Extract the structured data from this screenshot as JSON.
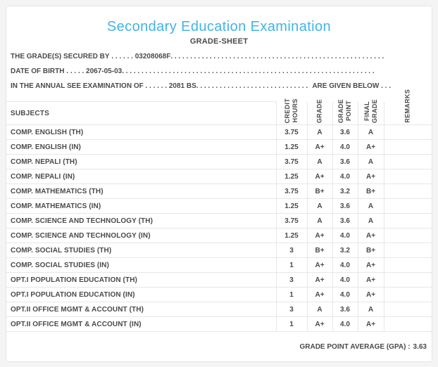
{
  "header": {
    "title": "Secondary Education Examination",
    "subtitle": "GRADE-SHEET",
    "title_color": "#41b4e8",
    "text_color": "#4a4a4a"
  },
  "info": {
    "rows": [
      {
        "label": "THE GRADE(S) SECURED BY",
        "leader": " . . . . . . ",
        "value": "03208068F",
        "suffix": ""
      },
      {
        "label": "DATE OF BIRTH",
        "leader": " . . . . . ",
        "value": "2067-05-03",
        "suffix": ""
      },
      {
        "label": "IN THE ANNUAL SEE EXAMINATION OF",
        "leader": " . . . . . . ",
        "value": "2081 BS",
        "suffix": "ARE GIVEN BELOW . . ."
      }
    ],
    "dot_fill": ". . . . . . . . . . . . . . . . . . . . . . . . . . . . . . . . . . . . . . . . . . . . . . . . . . . . . . . . . . . . . . . . . . . . . . . . . . . ."
  },
  "table": {
    "headers": [
      {
        "label": "SUBJECTS"
      },
      {
        "label": "CREDIT\nHOURS"
      },
      {
        "label": "GRADE"
      },
      {
        "label": "GRADE\nPOINT"
      },
      {
        "label": "FINAL\nGRADE"
      },
      {
        "label": "REMARKS"
      }
    ],
    "rows": [
      {
        "subject": "COMP. ENGLISH (TH)",
        "credit_hours": "3.75",
        "grade": "A",
        "grade_point": "3.6",
        "final_grade": "A",
        "remarks": ""
      },
      {
        "subject": "COMP. ENGLISH (IN)",
        "credit_hours": "1.25",
        "grade": "A+",
        "grade_point": "4.0",
        "final_grade": "A+",
        "remarks": ""
      },
      {
        "subject": "COMP. NEPALI (TH)",
        "credit_hours": "3.75",
        "grade": "A",
        "grade_point": "3.6",
        "final_grade": "A",
        "remarks": ""
      },
      {
        "subject": "COMP. NEPALI (IN)",
        "credit_hours": "1.25",
        "grade": "A+",
        "grade_point": "4.0",
        "final_grade": "A+",
        "remarks": ""
      },
      {
        "subject": "COMP. MATHEMATICS (TH)",
        "credit_hours": "3.75",
        "grade": "B+",
        "grade_point": "3.2",
        "final_grade": "B+",
        "remarks": ""
      },
      {
        "subject": "COMP. MATHEMATICS (IN)",
        "credit_hours": "1.25",
        "grade": "A",
        "grade_point": "3.6",
        "final_grade": "A",
        "remarks": ""
      },
      {
        "subject": "COMP. SCIENCE AND TECHNOLOGY (TH)",
        "credit_hours": "3.75",
        "grade": "A",
        "grade_point": "3.6",
        "final_grade": "A",
        "remarks": ""
      },
      {
        "subject": "COMP. SCIENCE AND TECHNOLOGY (IN)",
        "credit_hours": "1.25",
        "grade": "A+",
        "grade_point": "4.0",
        "final_grade": "A+",
        "remarks": ""
      },
      {
        "subject": "COMP. SOCIAL STUDIES (TH)",
        "credit_hours": "3",
        "grade": "B+",
        "grade_point": "3.2",
        "final_grade": "B+",
        "remarks": ""
      },
      {
        "subject": "COMP. SOCIAL STUDIES (IN)",
        "credit_hours": "1",
        "grade": "A+",
        "grade_point": "4.0",
        "final_grade": "A+",
        "remarks": ""
      },
      {
        "subject": "OPT.I POPULATION EDUCATION (TH)",
        "credit_hours": "3",
        "grade": "A+",
        "grade_point": "4.0",
        "final_grade": "A+",
        "remarks": ""
      },
      {
        "subject": "OPT.I POPULATION EDUCATION (IN)",
        "credit_hours": "1",
        "grade": "A+",
        "grade_point": "4.0",
        "final_grade": "A+",
        "remarks": ""
      },
      {
        "subject": "OPT.II OFFICE MGMT & ACCOUNT (TH)",
        "credit_hours": "3",
        "grade": "A",
        "grade_point": "3.6",
        "final_grade": "A",
        "remarks": ""
      },
      {
        "subject": "OPT.II OFFICE MGMT & ACCOUNT (IN)",
        "credit_hours": "1",
        "grade": "A+",
        "grade_point": "4.0",
        "final_grade": "A+",
        "remarks": ""
      }
    ]
  },
  "footer": {
    "gpa_label": "GRADE POINT AVERAGE (GPA) :",
    "gpa_value": "3.63"
  }
}
